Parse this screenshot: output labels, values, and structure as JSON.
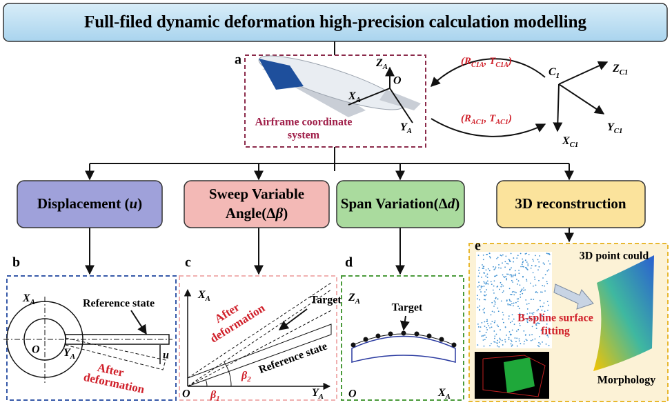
{
  "header": {
    "title": "Full-filed dynamic deformation high-precision calculation modelling"
  },
  "panel_a": {
    "label": "a",
    "caption_line1": "Airframe coordinate",
    "caption_line2": "system",
    "axis_z": [
      {
        "t": "Z"
      },
      {
        "s": "A"
      }
    ],
    "axis_x": [
      {
        "t": "X"
      },
      {
        "s": "A"
      }
    ],
    "axis_y": [
      {
        "t": "Y"
      },
      {
        "s": "A"
      }
    ],
    "origin": "O"
  },
  "transforms": {
    "camera_to_airframe": [
      {
        "t": "(R"
      },
      {
        "s": "C1A"
      },
      {
        "t": ", T"
      },
      {
        "s": "C1A"
      },
      {
        "t": ")"
      }
    ],
    "airframe_to_camera": [
      {
        "t": "(R"
      },
      {
        "s": "AC1"
      },
      {
        "t": ", T"
      },
      {
        "s": "AC1"
      },
      {
        "t": ")"
      }
    ]
  },
  "camera": {
    "origin": [
      {
        "t": "C"
      },
      {
        "s": "1"
      }
    ],
    "axis_z": [
      {
        "t": "Z"
      },
      {
        "s": "C1"
      }
    ],
    "axis_y": [
      {
        "t": "Y"
      },
      {
        "s": "C1"
      }
    ],
    "axis_x": [
      {
        "t": "X"
      },
      {
        "s": "C1"
      }
    ]
  },
  "branches": {
    "displacement": [
      {
        "t": "Displacement ("
      },
      {
        "i": "u"
      },
      {
        "t": ")"
      }
    ],
    "sweep_line1": [
      {
        "t": "Sweep Variable"
      }
    ],
    "sweep_line2": [
      {
        "t": "Angle(Δ"
      },
      {
        "i": "β"
      },
      {
        "t": ")"
      }
    ],
    "span": [
      {
        "t": "Span Variation(Δ"
      },
      {
        "i": "d"
      },
      {
        "t": ")"
      }
    ],
    "reconstruction": [
      {
        "t": "3D reconstruction"
      }
    ]
  },
  "panel_b": {
    "label": "b",
    "reference": "Reference state",
    "after_line1": "After",
    "after_line2": "deformation",
    "axis_x": [
      {
        "t": "X"
      },
      {
        "s": "A"
      }
    ],
    "origin": "O",
    "axis_y": [
      {
        "t": "Y"
      },
      {
        "s": "A"
      }
    ],
    "displacement": "u"
  },
  "panel_c": {
    "label": "c",
    "axis_x": [
      {
        "t": "X"
      },
      {
        "s": "A"
      }
    ],
    "after_line1": "After",
    "after_line2": "deformation",
    "target": "Target",
    "reference": "Reference state",
    "origin": "O",
    "beta1": [
      {
        "i": "β"
      },
      {
        "s": "1"
      }
    ],
    "beta2": [
      {
        "i": "β"
      },
      {
        "s": "2"
      }
    ],
    "axis_y": [
      {
        "t": "Y"
      },
      {
        "s": "A"
      }
    ]
  },
  "panel_d": {
    "label": "d",
    "axis_z": [
      {
        "t": "Z"
      },
      {
        "s": "A"
      }
    ],
    "target": "Target",
    "origin": "O",
    "axis_x": [
      {
        "t": "X"
      },
      {
        "s": "A"
      }
    ]
  },
  "panel_e": {
    "label": "e",
    "point_cloud": "3D point could",
    "fitting_line1": "B-spline surface",
    "fitting_line2": "fitting",
    "morphology": "Morphology"
  }
}
